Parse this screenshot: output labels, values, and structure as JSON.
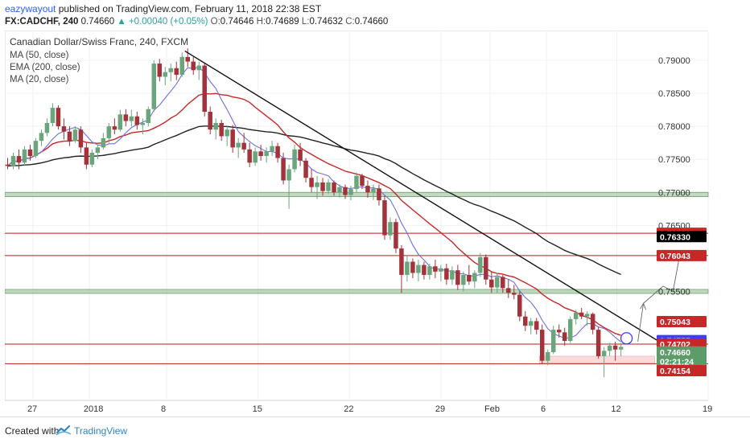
{
  "header": {
    "author": "eazywayout",
    "published": "published on TradingView.com, February 11, 2018 22:38 EST",
    "symbol": "FX:CADCHF, 240",
    "price": "0.74660",
    "change": "+0.00040 (+0.05%)",
    "o_label": "O:",
    "o": "0.74646",
    "h_label": "H:",
    "h": "0.74689",
    "l_label": "L:",
    "l": "0.74632",
    "c_label": "C:",
    "c": "0.74660"
  },
  "footer": {
    "created_with": "Created with",
    "brand": "TradingView"
  },
  "chart_data": {
    "type": "candlestick",
    "title": "Canadian Dollar/Swiss Franc, 240, FXCM",
    "indicators": [
      "MA (50, close)",
      "EMA (200, close)",
      "MA (20, close)"
    ],
    "xlim": [
      0,
      50
    ],
    "ylim": [
      0.7385,
      0.7945
    ],
    "x_ticks": [
      {
        "x": 2,
        "label": "27"
      },
      {
        "x": 6,
        "label": "2018"
      },
      {
        "x": 11.5,
        "label": "8"
      },
      {
        "x": 18,
        "label": "15"
      },
      {
        "x": 24.5,
        "label": "22"
      },
      {
        "x": 31,
        "label": "29"
      },
      {
        "x": 34.5,
        "label": "Feb"
      },
      {
        "x": 38.5,
        "label": "6"
      },
      {
        "x": 43.5,
        "label": "12"
      },
      {
        "x": 50,
        "label": "19"
      }
    ],
    "y_ticks": [
      "0.79000",
      "0.78500",
      "0.78000",
      "0.77500",
      "0.77000",
      "0.76500",
      "0.75500"
    ],
    "price_tags": [
      {
        "label": "0.76381",
        "value": 0.76381,
        "color": "#c62828"
      },
      {
        "label": "0.76330",
        "value": 0.7633,
        "color": "#000000"
      },
      {
        "label": "0.76043",
        "value": 0.76043,
        "color": "#c62828"
      },
      {
        "label": "0.75043",
        "value": 0.75043,
        "color": "#c62828"
      },
      {
        "label": "0.74755",
        "value": 0.74755,
        "color": "#3d3dff"
      },
      {
        "label": "0.74702",
        "value": 0.74702,
        "color": "#c62828"
      },
      {
        "label": "0.74660",
        "value": 0.74583,
        "color": "#5d9b68"
      },
      {
        "label": "02:21:24",
        "value": 0.7444,
        "color": "#5d9b68"
      },
      {
        "label": "0.74154",
        "value": 0.743,
        "color": "#c62828"
      }
    ],
    "hlines": [
      0.76381,
      0.76043,
      0.74702,
      0.74405
    ],
    "zones": [
      {
        "low": 0.76935,
        "high": 0.77,
        "color": "#8fbc8f"
      },
      {
        "low": 0.7547,
        "high": 0.7553,
        "color": "#8fbc8f"
      }
    ],
    "support_zone": {
      "x0": 38,
      "x1": 46.2,
      "low": 0.7442,
      "high": 0.7452
    },
    "trendline": {
      "x": [
        12.8,
        47.6
      ],
      "y": [
        0.7914,
        0.746
      ]
    },
    "projection": [
      [
        45,
        0.7474
      ],
      [
        45.4,
        0.7532
      ],
      [
        46.8,
        0.7558
      ],
      [
        47.5,
        0.755
      ],
      [
        48,
        0.7607
      ]
    ],
    "marker": {
      "x": 44.2,
      "y": 0.7479
    },
    "candles": [
      {
        "x": 0.2,
        "o": 0.7742,
        "h": 0.7752,
        "l": 0.7735,
        "c": 0.774
      },
      {
        "x": 0.6,
        "o": 0.774,
        "h": 0.776,
        "l": 0.7735,
        "c": 0.7755
      },
      {
        "x": 1.0,
        "o": 0.7755,
        "h": 0.7765,
        "l": 0.7735,
        "c": 0.7745
      },
      {
        "x": 1.4,
        "o": 0.7745,
        "h": 0.777,
        "l": 0.774,
        "c": 0.7765
      },
      {
        "x": 1.8,
        "o": 0.7765,
        "h": 0.7772,
        "l": 0.7748,
        "c": 0.7755
      },
      {
        "x": 2.2,
        "o": 0.7755,
        "h": 0.7782,
        "l": 0.7752,
        "c": 0.7778
      },
      {
        "x": 2.6,
        "o": 0.7778,
        "h": 0.7795,
        "l": 0.777,
        "c": 0.779
      },
      {
        "x": 3.0,
        "o": 0.779,
        "h": 0.7812,
        "l": 0.7785,
        "c": 0.7805
      },
      {
        "x": 3.4,
        "o": 0.7805,
        "h": 0.7835,
        "l": 0.78,
        "c": 0.7828
      },
      {
        "x": 3.8,
        "o": 0.7828,
        "h": 0.7832,
        "l": 0.7795,
        "c": 0.78
      },
      {
        "x": 4.2,
        "o": 0.78,
        "h": 0.7812,
        "l": 0.778,
        "c": 0.7792
      },
      {
        "x": 4.6,
        "o": 0.7792,
        "h": 0.78,
        "l": 0.777,
        "c": 0.7778
      },
      {
        "x": 5.0,
        "o": 0.7778,
        "h": 0.78,
        "l": 0.7775,
        "c": 0.7795
      },
      {
        "x": 5.4,
        "o": 0.7795,
        "h": 0.78,
        "l": 0.776,
        "c": 0.7768
      },
      {
        "x": 5.8,
        "o": 0.7768,
        "h": 0.7775,
        "l": 0.7735,
        "c": 0.7742
      },
      {
        "x": 6.2,
        "o": 0.7742,
        "h": 0.7765,
        "l": 0.7738,
        "c": 0.776
      },
      {
        "x": 6.6,
        "o": 0.776,
        "h": 0.7772,
        "l": 0.775,
        "c": 0.7768
      },
      {
        "x": 7.0,
        "o": 0.7768,
        "h": 0.779,
        "l": 0.7765,
        "c": 0.7782
      },
      {
        "x": 7.4,
        "o": 0.7782,
        "h": 0.7805,
        "l": 0.7775,
        "c": 0.78
      },
      {
        "x": 7.8,
        "o": 0.78,
        "h": 0.7812,
        "l": 0.7788,
        "c": 0.7795
      },
      {
        "x": 8.2,
        "o": 0.7795,
        "h": 0.7825,
        "l": 0.7792,
        "c": 0.7818
      },
      {
        "x": 8.6,
        "o": 0.7818,
        "h": 0.7826,
        "l": 0.78,
        "c": 0.7808
      },
      {
        "x": 9.0,
        "o": 0.7808,
        "h": 0.7825,
        "l": 0.78,
        "c": 0.7815
      },
      {
        "x": 9.4,
        "o": 0.7815,
        "h": 0.7822,
        "l": 0.7795,
        "c": 0.7802
      },
      {
        "x": 9.8,
        "o": 0.7802,
        "h": 0.7812,
        "l": 0.7788,
        "c": 0.7805
      },
      {
        "x": 10.2,
        "o": 0.7805,
        "h": 0.783,
        "l": 0.78,
        "c": 0.7826
      },
      {
        "x": 10.6,
        "o": 0.7826,
        "h": 0.79,
        "l": 0.7822,
        "c": 0.7895
      },
      {
        "x": 11.0,
        "o": 0.7895,
        "h": 0.7902,
        "l": 0.7868,
        "c": 0.7875
      },
      {
        "x": 11.4,
        "o": 0.7875,
        "h": 0.789,
        "l": 0.7862,
        "c": 0.7882
      },
      {
        "x": 11.8,
        "o": 0.7882,
        "h": 0.7895,
        "l": 0.7868,
        "c": 0.7888
      },
      {
        "x": 12.2,
        "o": 0.7888,
        "h": 0.7898,
        "l": 0.787,
        "c": 0.7878
      },
      {
        "x": 12.6,
        "o": 0.7878,
        "h": 0.7912,
        "l": 0.7875,
        "c": 0.7905
      },
      {
        "x": 13.0,
        "o": 0.7905,
        "h": 0.7918,
        "l": 0.789,
        "c": 0.7898
      },
      {
        "x": 13.4,
        "o": 0.7898,
        "h": 0.7905,
        "l": 0.7878,
        "c": 0.7885
      },
      {
        "x": 13.8,
        "o": 0.7885,
        "h": 0.7898,
        "l": 0.787,
        "c": 0.7892
      },
      {
        "x": 14.2,
        "o": 0.7892,
        "h": 0.7895,
        "l": 0.7815,
        "c": 0.7822
      },
      {
        "x": 14.6,
        "o": 0.7822,
        "h": 0.783,
        "l": 0.7788,
        "c": 0.7795
      },
      {
        "x": 15.0,
        "o": 0.7795,
        "h": 0.7812,
        "l": 0.778,
        "c": 0.7805
      },
      {
        "x": 15.4,
        "o": 0.7805,
        "h": 0.781,
        "l": 0.7778,
        "c": 0.7785
      },
      {
        "x": 15.8,
        "o": 0.7785,
        "h": 0.78,
        "l": 0.777,
        "c": 0.7795
      },
      {
        "x": 16.2,
        "o": 0.7795,
        "h": 0.7802,
        "l": 0.776,
        "c": 0.7768
      },
      {
        "x": 16.6,
        "o": 0.7768,
        "h": 0.7782,
        "l": 0.7752,
        "c": 0.7775
      },
      {
        "x": 17.0,
        "o": 0.7775,
        "h": 0.779,
        "l": 0.776,
        "c": 0.7765
      },
      {
        "x": 17.4,
        "o": 0.7765,
        "h": 0.7775,
        "l": 0.7738,
        "c": 0.7745
      },
      {
        "x": 17.8,
        "o": 0.7745,
        "h": 0.7768,
        "l": 0.774,
        "c": 0.7762
      },
      {
        "x": 18.2,
        "o": 0.7762,
        "h": 0.7772,
        "l": 0.7748,
        "c": 0.7755
      },
      {
        "x": 18.6,
        "o": 0.7755,
        "h": 0.7768,
        "l": 0.7745,
        "c": 0.7762
      },
      {
        "x": 19.0,
        "o": 0.7762,
        "h": 0.7778,
        "l": 0.7755,
        "c": 0.777
      },
      {
        "x": 19.4,
        "o": 0.777,
        "h": 0.7775,
        "l": 0.7745,
        "c": 0.7752
      },
      {
        "x": 19.8,
        "o": 0.7752,
        "h": 0.776,
        "l": 0.7712,
        "c": 0.7718
      },
      {
        "x": 20.2,
        "o": 0.7718,
        "h": 0.7742,
        "l": 0.7675,
        "c": 0.7735
      },
      {
        "x": 20.6,
        "o": 0.7735,
        "h": 0.7772,
        "l": 0.773,
        "c": 0.7765
      },
      {
        "x": 21.0,
        "o": 0.7765,
        "h": 0.7775,
        "l": 0.774,
        "c": 0.7748
      },
      {
        "x": 21.4,
        "o": 0.7748,
        "h": 0.7752,
        "l": 0.7715,
        "c": 0.7722
      },
      {
        "x": 21.8,
        "o": 0.7722,
        "h": 0.7735,
        "l": 0.77,
        "c": 0.7708
      },
      {
        "x": 22.2,
        "o": 0.7708,
        "h": 0.7725,
        "l": 0.769,
        "c": 0.7715
      },
      {
        "x": 22.6,
        "o": 0.7715,
        "h": 0.7722,
        "l": 0.7695,
        "c": 0.7702
      },
      {
        "x": 23.0,
        "o": 0.7702,
        "h": 0.772,
        "l": 0.7698,
        "c": 0.7715
      },
      {
        "x": 23.4,
        "o": 0.7715,
        "h": 0.7718,
        "l": 0.7695,
        "c": 0.77
      },
      {
        "x": 23.8,
        "o": 0.77,
        "h": 0.7712,
        "l": 0.7692,
        "c": 0.7708
      },
      {
        "x": 24.2,
        "o": 0.7708,
        "h": 0.7712,
        "l": 0.769,
        "c": 0.7696
      },
      {
        "x": 24.6,
        "o": 0.7696,
        "h": 0.771,
        "l": 0.7688,
        "c": 0.7705
      },
      {
        "x": 25.0,
        "o": 0.7705,
        "h": 0.773,
        "l": 0.77,
        "c": 0.7725
      },
      {
        "x": 25.4,
        "o": 0.7725,
        "h": 0.7728,
        "l": 0.7705,
        "c": 0.771
      },
      {
        "x": 25.8,
        "o": 0.771,
        "h": 0.7718,
        "l": 0.7692,
        "c": 0.77
      },
      {
        "x": 26.2,
        "o": 0.77,
        "h": 0.7712,
        "l": 0.7688,
        "c": 0.7706
      },
      {
        "x": 26.6,
        "o": 0.7706,
        "h": 0.7712,
        "l": 0.768,
        "c": 0.7688
      },
      {
        "x": 27.0,
        "o": 0.7688,
        "h": 0.7695,
        "l": 0.7628,
        "c": 0.7635
      },
      {
        "x": 27.4,
        "o": 0.7635,
        "h": 0.7662,
        "l": 0.7628,
        "c": 0.7655
      },
      {
        "x": 27.8,
        "o": 0.7655,
        "h": 0.766,
        "l": 0.7608,
        "c": 0.7615
      },
      {
        "x": 28.2,
        "o": 0.7615,
        "h": 0.762,
        "l": 0.7548,
        "c": 0.7575
      },
      {
        "x": 28.6,
        "o": 0.7575,
        "h": 0.7605,
        "l": 0.7565,
        "c": 0.7595
      },
      {
        "x": 29.0,
        "o": 0.7595,
        "h": 0.76,
        "l": 0.757,
        "c": 0.7578
      },
      {
        "x": 29.4,
        "o": 0.7578,
        "h": 0.7598,
        "l": 0.7565,
        "c": 0.759
      },
      {
        "x": 29.8,
        "o": 0.759,
        "h": 0.7595,
        "l": 0.7568,
        "c": 0.7575
      },
      {
        "x": 30.2,
        "o": 0.7575,
        "h": 0.7592,
        "l": 0.7568,
        "c": 0.7588
      },
      {
        "x": 30.6,
        "o": 0.7588,
        "h": 0.7598,
        "l": 0.757,
        "c": 0.758
      },
      {
        "x": 31.0,
        "o": 0.758,
        "h": 0.759,
        "l": 0.7565,
        "c": 0.7585
      },
      {
        "x": 31.4,
        "o": 0.7585,
        "h": 0.7592,
        "l": 0.756,
        "c": 0.7568
      },
      {
        "x": 31.8,
        "o": 0.7568,
        "h": 0.7588,
        "l": 0.756,
        "c": 0.7582
      },
      {
        "x": 32.2,
        "o": 0.7582,
        "h": 0.759,
        "l": 0.7552,
        "c": 0.756
      },
      {
        "x": 32.6,
        "o": 0.756,
        "h": 0.758,
        "l": 0.755,
        "c": 0.7575
      },
      {
        "x": 33.0,
        "o": 0.7575,
        "h": 0.759,
        "l": 0.756,
        "c": 0.7565
      },
      {
        "x": 33.4,
        "o": 0.7565,
        "h": 0.7582,
        "l": 0.7555,
        "c": 0.7578
      },
      {
        "x": 33.8,
        "o": 0.7578,
        "h": 0.7608,
        "l": 0.7572,
        "c": 0.7602
      },
      {
        "x": 34.2,
        "o": 0.7602,
        "h": 0.7606,
        "l": 0.756,
        "c": 0.7568
      },
      {
        "x": 34.6,
        "o": 0.7568,
        "h": 0.758,
        "l": 0.7548,
        "c": 0.7556
      },
      {
        "x": 35.0,
        "o": 0.7556,
        "h": 0.7578,
        "l": 0.7548,
        "c": 0.7572
      },
      {
        "x": 35.4,
        "o": 0.7572,
        "h": 0.7575,
        "l": 0.7548,
        "c": 0.7555
      },
      {
        "x": 35.8,
        "o": 0.7555,
        "h": 0.7568,
        "l": 0.754,
        "c": 0.7548
      },
      {
        "x": 36.2,
        "o": 0.7548,
        "h": 0.756,
        "l": 0.7538,
        "c": 0.7545
      },
      {
        "x": 36.6,
        "o": 0.7545,
        "h": 0.755,
        "l": 0.7505,
        "c": 0.7512
      },
      {
        "x": 37.0,
        "o": 0.7512,
        "h": 0.752,
        "l": 0.749,
        "c": 0.7498
      },
      {
        "x": 37.4,
        "o": 0.7498,
        "h": 0.751,
        "l": 0.7485,
        "c": 0.7505
      },
      {
        "x": 37.8,
        "o": 0.7505,
        "h": 0.751,
        "l": 0.7485,
        "c": 0.7492
      },
      {
        "x": 38.2,
        "o": 0.7492,
        "h": 0.75,
        "l": 0.744,
        "c": 0.7445
      },
      {
        "x": 38.6,
        "o": 0.7445,
        "h": 0.7462,
        "l": 0.7438,
        "c": 0.7458
      },
      {
        "x": 39.0,
        "o": 0.7458,
        "h": 0.7498,
        "l": 0.7455,
        "c": 0.7492
      },
      {
        "x": 39.4,
        "o": 0.7492,
        "h": 0.75,
        "l": 0.748,
        "c": 0.7488
      },
      {
        "x": 39.8,
        "o": 0.7488,
        "h": 0.7495,
        "l": 0.7468,
        "c": 0.7475
      },
      {
        "x": 40.2,
        "o": 0.7475,
        "h": 0.7512,
        "l": 0.7472,
        "c": 0.7508
      },
      {
        "x": 40.6,
        "o": 0.7508,
        "h": 0.7522,
        "l": 0.75,
        "c": 0.7518
      },
      {
        "x": 41.0,
        "o": 0.7518,
        "h": 0.7525,
        "l": 0.7508,
        "c": 0.7512
      },
      {
        "x": 41.4,
        "o": 0.7512,
        "h": 0.752,
        "l": 0.7498,
        "c": 0.7516
      },
      {
        "x": 41.8,
        "o": 0.7516,
        "h": 0.7518,
        "l": 0.7485,
        "c": 0.7492
      },
      {
        "x": 42.2,
        "o": 0.7492,
        "h": 0.7496,
        "l": 0.7448,
        "c": 0.7452
      },
      {
        "x": 42.6,
        "o": 0.7452,
        "h": 0.7466,
        "l": 0.742,
        "c": 0.746
      },
      {
        "x": 43.0,
        "o": 0.746,
        "h": 0.7472,
        "l": 0.7452,
        "c": 0.7468
      },
      {
        "x": 43.4,
        "o": 0.7468,
        "h": 0.7474,
        "l": 0.7445,
        "c": 0.7462
      },
      {
        "x": 43.8,
        "o": 0.7462,
        "h": 0.7472,
        "l": 0.7452,
        "c": 0.7466
      }
    ]
  }
}
